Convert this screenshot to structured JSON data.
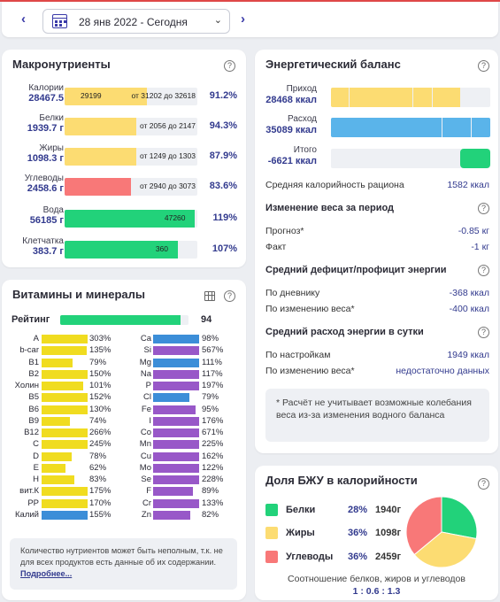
{
  "date_bar": {
    "prev_icon": "chevron-left-icon",
    "next_icon": "chevron-right-icon",
    "date_label": "28 янв 2022 - Сегодня",
    "calendar_icon": "calendar-icon"
  },
  "colors": {
    "yellow": "#fcdc72",
    "blue": "#5ab4ea",
    "green": "#22d27a",
    "red": "#f87878",
    "vit_yellow": "#f0dc20",
    "min_blue": "#3c8ed8",
    "min_purple": "#9858c8",
    "navy": "#323a8e"
  },
  "macros": {
    "title": "Макронутриенты",
    "rows": [
      {
        "label": "Калории",
        "value": "28467.5",
        "in_left": "29199",
        "in_right": "от 31202 до 32618",
        "percent": "91.2%",
        "fill": 0.62,
        "color": "yellow"
      },
      {
        "label": "Белки",
        "value": "1939.7 г",
        "in_left": "",
        "in_right": "от 2056  до 2147",
        "percent": "94.3%",
        "fill": 0.54,
        "color": "yellow"
      },
      {
        "label": "Жиры",
        "value": "1098.3 г",
        "in_left": "",
        "in_right": "от 1249  до 1303",
        "percent": "87.9%",
        "fill": 0.54,
        "color": "yellow"
      },
      {
        "label": "Углеводы",
        "value": "2458.6 г",
        "in_left": "",
        "in_right": "от 2940  до 3073",
        "percent": "83.6%",
        "fill": 0.5,
        "color": "red"
      },
      {
        "label": "Вода",
        "value": "56185 г",
        "in_left": "",
        "in_right": "47260",
        "percent": "119%",
        "fill": 0.98,
        "color": "green"
      },
      {
        "label": "Клетчатка",
        "value": "383.7 г",
        "in_left": "",
        "in_right": "360",
        "percent": "107%",
        "fill": 0.85,
        "color": "green"
      }
    ]
  },
  "vitamins": {
    "title": "Витамины и минералы",
    "rating_label": "Рейтинг",
    "rating_value": "94",
    "rating_fill": 0.94,
    "left": [
      {
        "name": "A",
        "percent": "303%",
        "fill": 1.0
      },
      {
        "name": "b-car",
        "percent": "135%",
        "fill": 0.98
      },
      {
        "name": "B1",
        "percent": "79%",
        "fill": 0.68
      },
      {
        "name": "B2",
        "percent": "150%",
        "fill": 1.0
      },
      {
        "name": "Холин",
        "percent": "101%",
        "fill": 0.9
      },
      {
        "name": "B5",
        "percent": "152%",
        "fill": 1.0
      },
      {
        "name": "B6",
        "percent": "130%",
        "fill": 1.0
      },
      {
        "name": "B9",
        "percent": "74%",
        "fill": 0.62
      },
      {
        "name": "B12",
        "percent": "266%",
        "fill": 1.0
      },
      {
        "name": "C",
        "percent": "245%",
        "fill": 1.0
      },
      {
        "name": "D",
        "percent": "78%",
        "fill": 0.65
      },
      {
        "name": "E",
        "percent": "62%",
        "fill": 0.52
      },
      {
        "name": "H",
        "percent": "83%",
        "fill": 0.72
      },
      {
        "name": "вит.К",
        "percent": "175%",
        "fill": 1.0
      },
      {
        "name": "PP",
        "percent": "170%",
        "fill": 1.0
      }
    ],
    "kalium": {
      "name": "Калий",
      "percent": "155%",
      "fill": 1.0
    },
    "right": [
      {
        "name": "Ca",
        "percent": "98%",
        "fill": 1.0,
        "color": "min_blue"
      },
      {
        "name": "Si",
        "percent": "567%",
        "fill": 1.0,
        "color": "min_purple"
      },
      {
        "name": "Mg",
        "percent": "111%",
        "fill": 1.0,
        "color": "min_blue"
      },
      {
        "name": "Na",
        "percent": "117%",
        "fill": 1.0,
        "color": "min_purple"
      },
      {
        "name": "P",
        "percent": "197%",
        "fill": 1.0,
        "color": "min_purple"
      },
      {
        "name": "Cl",
        "percent": "79%",
        "fill": 0.78,
        "color": "min_blue"
      },
      {
        "name": "Fe",
        "percent": "95%",
        "fill": 0.92,
        "color": "min_purple"
      },
      {
        "name": "I",
        "percent": "176%",
        "fill": 1.0,
        "color": "min_purple"
      },
      {
        "name": "Co",
        "percent": "671%",
        "fill": 1.0,
        "color": "min_purple"
      },
      {
        "name": "Mn",
        "percent": "225%",
        "fill": 1.0,
        "color": "min_purple"
      },
      {
        "name": "Cu",
        "percent": "162%",
        "fill": 1.0,
        "color": "min_purple"
      },
      {
        "name": "Mo",
        "percent": "122%",
        "fill": 1.0,
        "color": "min_purple"
      },
      {
        "name": "Se",
        "percent": "228%",
        "fill": 1.0,
        "color": "min_purple"
      },
      {
        "name": "F",
        "percent": "89%",
        "fill": 0.86,
        "color": "min_purple"
      },
      {
        "name": "Cr",
        "percent": "133%",
        "fill": 1.0,
        "color": "min_purple"
      },
      {
        "name": "Zn",
        "percent": "82%",
        "fill": 0.8,
        "color": "min_purple"
      }
    ],
    "note": "Количество нутриентов может быть неполным, т.к. не для всех продуктов есть данные об их содержании.",
    "note_link": "Подробнее..."
  },
  "energy": {
    "title": "Энергетический баланс",
    "income_label": "Приход",
    "income_value": "28468 ккал",
    "income_fill": 0.81,
    "expense_label": "Расход",
    "expense_value": "35089 ккал",
    "expense_fill": 1.0,
    "total_label": "Итого",
    "total_value": "-6621 ккал",
    "total_fill": 0.19,
    "avg_cal_label": "Средняя калорийность рациона",
    "avg_cal_value": "1582 ккал",
    "weight_title": "Изменение веса за период",
    "forecast_label": "Прогноз*",
    "forecast_value": "-0.85 кг",
    "fact_label": "Факт",
    "fact_value": "-1 кг",
    "deficit_title": "Средний дефицит/профицит энергии",
    "diary_label": "По дневнику",
    "diary_value": "-368 ккал",
    "weightchg_label": "По изменению веса*",
    "weightchg_value": "-400 ккал",
    "spend_title": "Средний расход энергии в сутки",
    "settings_label": "По настройкам",
    "settings_value": "1949 ккал",
    "weightchg2_label": "По изменению веса*",
    "weightchg2_value": "недостаточно данных",
    "note": "* Расчёт не учитывает возможные колебания веса из-за изменения водного баланса"
  },
  "bju": {
    "title": "Доля БЖУ в калорийности",
    "rows": [
      {
        "name": "Белки",
        "percent": "28%",
        "grams": "1940г",
        "color": "green"
      },
      {
        "name": "Жиры",
        "percent": "36%",
        "grams": "1098г",
        "color": "yellow"
      },
      {
        "name": "Углеводы",
        "percent": "36%",
        "grams": "2459г",
        "color": "red"
      }
    ],
    "ratio_label": "Соотношение белков, жиров и углеводов",
    "ratio_value": "1 : 0.6 : 1.3"
  }
}
